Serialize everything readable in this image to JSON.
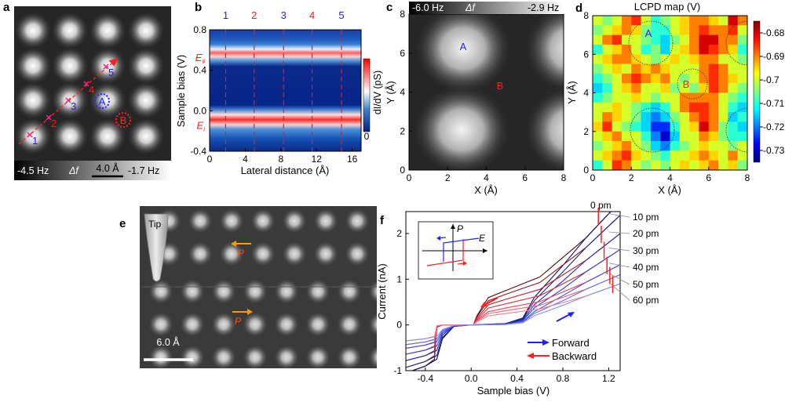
{
  "panel_labels": {
    "a": "a",
    "b": "b",
    "c": "c",
    "d": "d",
    "e": "e",
    "f": "f"
  },
  "panel_a": {
    "colorbar_min": "-4.5 Hz",
    "colorbar_symbol": "Δf",
    "colorbar_max": "-1.7 Hz",
    "scale_bar": "4.0 Å",
    "markers": [
      "1",
      "2",
      "3",
      "4",
      "5"
    ],
    "marker_colors": [
      "#1a1aff",
      "#ff1a1a",
      "#1a1aff",
      "#ff1a1a",
      "#1a1aff"
    ],
    "site_a": "A",
    "site_b": "B"
  },
  "chart_data": [
    {
      "panel": "b",
      "type": "heatmap",
      "xlabel": "Lateral distance (Å)",
      "ylabel": "Sample bias (V)",
      "xlim": [
        0,
        17
      ],
      "ylim": [
        -0.4,
        0.8
      ],
      "xticks": [
        0,
        4,
        8,
        12,
        16
      ],
      "yticks": [
        "-0.4",
        "0.0",
        "0.4",
        "0.8"
      ],
      "colorbar_label": "dI/dV (pS)",
      "colorbar_tick": "0",
      "band_labels": [
        {
          "text": "E",
          "sub": "ii",
          "bias": 0.52
        },
        {
          "text": "E",
          "sub": "i",
          "bias": -0.15
        }
      ],
      "dashed_lines_x": [
        1.8,
        5.0,
        8.3,
        11.5,
        14.8
      ],
      "dashed_labels": [
        "1",
        "2",
        "3",
        "4",
        "5"
      ],
      "dashed_label_colors": [
        "#1a1aff",
        "#ff1a1a",
        "#1a1aff",
        "#ff1a1a",
        "#1a1aff"
      ]
    },
    {
      "panel": "c",
      "type": "image",
      "xlabel": "X (Å)",
      "ylabel": "Y (Å)",
      "xlim": [
        0,
        8
      ],
      "ylim": [
        0,
        8
      ],
      "xticks": [
        0,
        2,
        4,
        6,
        8
      ],
      "yticks": [
        0,
        2,
        4,
        6,
        8
      ],
      "colorbar_min": "-6.0 Hz",
      "colorbar_symbol": "Δf",
      "colorbar_max": "-2.9 Hz",
      "site_a": "A",
      "site_b": "B"
    },
    {
      "panel": "d",
      "type": "heatmap",
      "title": "LCPD map (V)",
      "xlabel": "X (Å)",
      "ylabel": "Y (Å)",
      "xlim": [
        0,
        8
      ],
      "ylim": [
        0,
        8
      ],
      "xticks": [
        0,
        2,
        4,
        6,
        8
      ],
      "yticks": [
        0,
        2,
        4,
        6,
        8
      ],
      "colorbar_ticks": [
        "-0.68",
        "-0.69",
        "-0.7",
        "-0.71",
        "-0.72",
        "-0.73"
      ],
      "color_range": [
        -0.735,
        -0.675
      ],
      "site_a": "A",
      "site_b": "B",
      "grid_rows_top_to_bottom": [
        [
          -0.7,
          -0.705,
          -0.7,
          -0.69,
          -0.685,
          -0.7,
          -0.71,
          -0.705,
          -0.7,
          -0.695,
          -0.69,
          -0.69,
          -0.695,
          -0.7,
          -0.68,
          -0.69
        ],
        [
          -0.705,
          -0.7,
          -0.695,
          -0.69,
          -0.695,
          -0.705,
          -0.71,
          -0.71,
          -0.7,
          -0.695,
          -0.69,
          -0.685,
          -0.69,
          -0.69,
          -0.685,
          -0.7
        ],
        [
          -0.7,
          -0.69,
          -0.685,
          -0.7,
          -0.7,
          -0.705,
          -0.71,
          -0.715,
          -0.705,
          -0.7,
          -0.69,
          -0.68,
          -0.68,
          -0.69,
          -0.69,
          -0.705
        ],
        [
          -0.71,
          -0.7,
          -0.695,
          -0.69,
          -0.7,
          -0.71,
          -0.705,
          -0.715,
          -0.7,
          -0.695,
          -0.69,
          -0.68,
          -0.685,
          -0.69,
          -0.695,
          -0.71
        ],
        [
          -0.7,
          -0.695,
          -0.69,
          -0.69,
          -0.695,
          -0.7,
          -0.705,
          -0.7,
          -0.695,
          -0.7,
          -0.695,
          -0.69,
          -0.69,
          -0.7,
          -0.7,
          -0.705
        ],
        [
          -0.705,
          -0.7,
          -0.695,
          -0.7,
          -0.69,
          -0.695,
          -0.69,
          -0.695,
          -0.7,
          -0.7,
          -0.7,
          -0.69,
          -0.685,
          -0.69,
          -0.7,
          -0.7
        ],
        [
          -0.71,
          -0.705,
          -0.7,
          -0.69,
          -0.685,
          -0.69,
          -0.695,
          -0.69,
          -0.7,
          -0.705,
          -0.7,
          -0.69,
          -0.685,
          -0.69,
          -0.695,
          -0.7
        ],
        [
          -0.715,
          -0.71,
          -0.7,
          -0.695,
          -0.69,
          -0.7,
          -0.7,
          -0.695,
          -0.705,
          -0.7,
          -0.705,
          -0.695,
          -0.685,
          -0.69,
          -0.7,
          -0.705
        ],
        [
          -0.71,
          -0.705,
          -0.7,
          -0.7,
          -0.695,
          -0.7,
          -0.705,
          -0.7,
          -0.7,
          -0.69,
          -0.69,
          -0.69,
          -0.69,
          -0.7,
          -0.705,
          -0.71
        ],
        [
          -0.7,
          -0.7,
          -0.695,
          -0.7,
          -0.705,
          -0.71,
          -0.715,
          -0.71,
          -0.7,
          -0.69,
          -0.685,
          -0.685,
          -0.69,
          -0.7,
          -0.71,
          -0.715
        ],
        [
          -0.7,
          -0.69,
          -0.695,
          -0.7,
          -0.705,
          -0.715,
          -0.72,
          -0.715,
          -0.705,
          -0.7,
          -0.69,
          -0.685,
          -0.69,
          -0.7,
          -0.715,
          -0.71
        ],
        [
          -0.695,
          -0.685,
          -0.7,
          -0.705,
          -0.71,
          -0.715,
          -0.725,
          -0.725,
          -0.71,
          -0.7,
          -0.695,
          -0.68,
          -0.69,
          -0.705,
          -0.71,
          -0.715
        ],
        [
          -0.7,
          -0.695,
          -0.69,
          -0.7,
          -0.7,
          -0.71,
          -0.72,
          -0.73,
          -0.715,
          -0.7,
          -0.7,
          -0.69,
          -0.695,
          -0.705,
          -0.71,
          -0.71
        ],
        [
          -0.705,
          -0.7,
          -0.695,
          -0.69,
          -0.7,
          -0.705,
          -0.715,
          -0.72,
          -0.71,
          -0.705,
          -0.7,
          -0.695,
          -0.7,
          -0.7,
          -0.705,
          -0.7
        ],
        [
          -0.7,
          -0.695,
          -0.69,
          -0.685,
          -0.695,
          -0.7,
          -0.705,
          -0.71,
          -0.7,
          -0.7,
          -0.695,
          -0.69,
          -0.695,
          -0.7,
          -0.69,
          -0.7
        ],
        [
          -0.71,
          -0.7,
          -0.685,
          -0.69,
          -0.7,
          -0.705,
          -0.7,
          -0.705,
          -0.7,
          -0.695,
          -0.7,
          -0.695,
          -0.69,
          -0.7,
          -0.695,
          -0.705
        ]
      ]
    },
    {
      "panel": "f",
      "type": "line",
      "xlabel": "Sample bias (V)",
      "ylabel": "Current (nA)",
      "xlim": [
        -0.57,
        1.3
      ],
      "ylim": [
        -1,
        2.48
      ],
      "xticks": [
        "-0.4",
        "0.0",
        "0.4",
        "0.8",
        "1.2"
      ],
      "yticks": [
        "-1",
        "0",
        "1",
        "2"
      ],
      "legend": [
        {
          "name": "Forward",
          "color": "#1a1aff"
        },
        {
          "name": "Backward",
          "color": "#ff2020"
        }
      ],
      "legend_placement": "bottom-right",
      "inset_labels": {
        "p": "P",
        "e": "E"
      },
      "forward_x": [
        -0.57,
        -0.4,
        -0.3,
        -0.25,
        -0.15,
        0,
        0.3,
        0.45,
        0.55,
        0.8,
        1.0,
        1.3
      ],
      "backward_x": [
        1.3,
        1.0,
        0.6,
        0.3,
        0.15,
        0.05,
        0.02,
        -0.25,
        -0.3,
        -0.32,
        -0.4,
        -0.57
      ],
      "series": [
        {
          "name": "0 pm",
          "forward": [
            -1.05,
            -0.9,
            -0.75,
            -0.3,
            -0.03,
            0,
            0.03,
            0.15,
            0.6,
            1.3,
            1.9,
            2.7
          ],
          "backward": [
            2.7,
            1.9,
            1.05,
            0.75,
            0.6,
            0.2,
            0,
            0,
            -0.05,
            -0.75,
            -0.9,
            -1.05
          ]
        },
        {
          "name": "10 pm",
          "forward": [
            -0.93,
            -0.8,
            -0.67,
            -0.27,
            -0.03,
            0,
            0.03,
            0.13,
            0.53,
            1.16,
            1.69,
            2.4
          ],
          "backward": [
            2.4,
            1.69,
            0.93,
            0.67,
            0.53,
            0.18,
            0,
            0,
            -0.04,
            -0.67,
            -0.8,
            -0.93
          ]
        },
        {
          "name": "20 pm",
          "forward": [
            -0.78,
            -0.67,
            -0.56,
            -0.22,
            -0.02,
            0,
            0.02,
            0.11,
            0.44,
            0.96,
            1.41,
            2.0
          ],
          "backward": [
            2.0,
            1.41,
            0.78,
            0.56,
            0.44,
            0.15,
            0,
            0,
            -0.04,
            -0.56,
            -0.67,
            -0.78
          ]
        },
        {
          "name": "30 pm",
          "forward": [
            -0.64,
            -0.55,
            -0.46,
            -0.18,
            -0.02,
            0,
            0.02,
            0.09,
            0.37,
            0.79,
            1.16,
            1.65
          ],
          "backward": [
            1.65,
            1.16,
            0.64,
            0.46,
            0.37,
            0.12,
            0,
            0,
            -0.03,
            -0.46,
            -0.55,
            -0.64
          ]
        },
        {
          "name": "40 pm",
          "forward": [
            -0.51,
            -0.44,
            -0.37,
            -0.15,
            -0.01,
            0,
            0.01,
            0.07,
            0.29,
            0.64,
            0.93,
            1.32
          ],
          "backward": [
            1.32,
            0.93,
            0.51,
            0.37,
            0.29,
            0.1,
            0,
            0,
            -0.02,
            -0.37,
            -0.44,
            -0.51
          ]
        },
        {
          "name": "50 pm",
          "forward": [
            -0.43,
            -0.37,
            -0.31,
            -0.12,
            -0.01,
            0,
            0.01,
            0.06,
            0.25,
            0.53,
            0.78,
            1.1
          ],
          "backward": [
            1.1,
            0.78,
            0.43,
            0.31,
            0.25,
            0.08,
            0,
            0,
            -0.02,
            -0.31,
            -0.37,
            -0.43
          ]
        },
        {
          "name": "60 pm",
          "forward": [
            -0.35,
            -0.3,
            -0.25,
            -0.1,
            -0.01,
            0,
            0.01,
            0.05,
            0.2,
            0.43,
            0.63,
            0.9
          ],
          "backward": [
            0.9,
            0.63,
            0.35,
            0.25,
            0.2,
            0.07,
            0,
            0,
            -0.02,
            -0.25,
            -0.3,
            -0.35
          ]
        }
      ]
    }
  ],
  "panel_e": {
    "tip_label": "Tip",
    "polarization_label": "P",
    "scale_bar": "6.0 Å",
    "arrow_color": "#ff9900"
  }
}
